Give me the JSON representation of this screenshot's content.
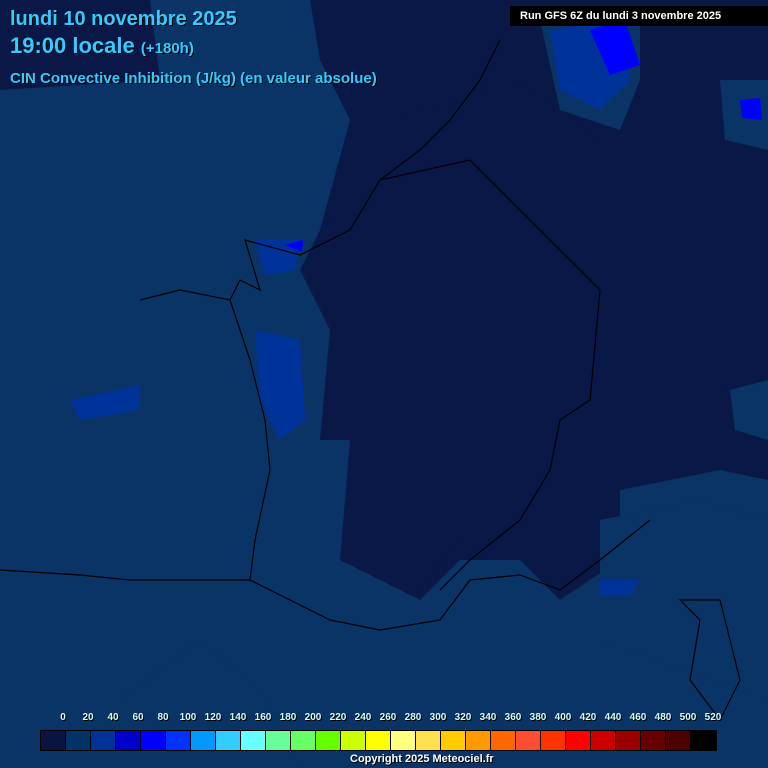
{
  "header": {
    "date": "lundi 10 novembre 2025",
    "time": "19:00 locale",
    "lead": "(+180h)",
    "variable": "CIN Convective Inhibition (J/kg) (en valeur absolue)"
  },
  "run_label": "Run GFS 6Z du lundi 3 novembre 2025",
  "legend": {
    "labels": [
      "0",
      "20",
      "40",
      "60",
      "80",
      "100",
      "120",
      "140",
      "160",
      "180",
      "200",
      "220",
      "240",
      "260",
      "280",
      "300",
      "320",
      "340",
      "360",
      "380",
      "400",
      "420",
      "440",
      "460",
      "480",
      "500",
      "520"
    ],
    "colors": [
      "#0a1440",
      "#003366",
      "#003399",
      "#0000cc",
      "#0000ff",
      "#0033ff",
      "#0099ff",
      "#33ccff",
      "#66ffff",
      "#66ff99",
      "#66ff66",
      "#66ff00",
      "#ccff00",
      "#ffff00",
      "#ffff80",
      "#ffe050",
      "#ffcc00",
      "#ff9900",
      "#ff6600",
      "#ff4c33",
      "#ff3300",
      "#ff0000",
      "#cc0000",
      "#990000",
      "#660000",
      "#4d0000",
      "#000000"
    ]
  },
  "copyright": "Copyright 2025 Meteociel.fr",
  "map_colors": {
    "background": "#0a1848",
    "low_cin": "#0a3366",
    "mid_cin": "#003399",
    "high_cin": "#0000ff",
    "borders": "#000000"
  }
}
